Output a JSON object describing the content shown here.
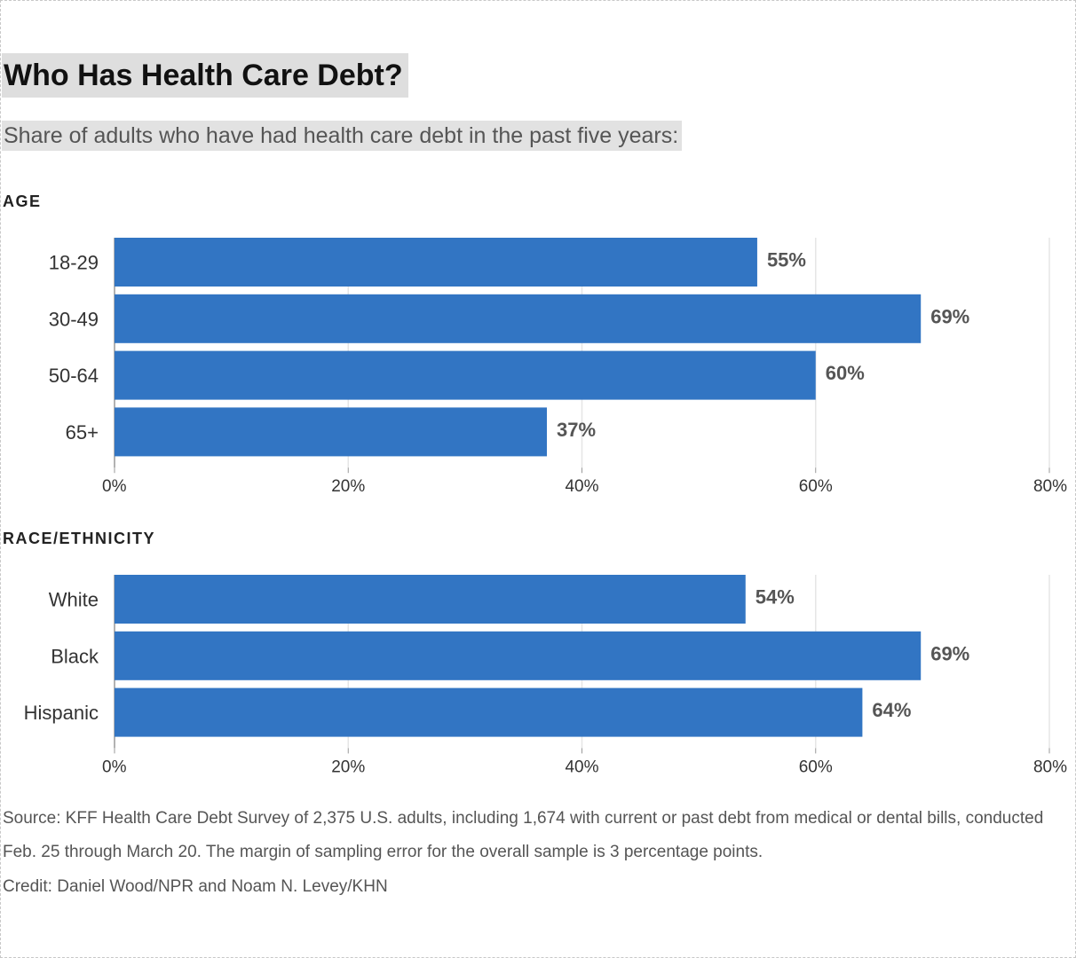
{
  "title": "Who Has Health Care Debt?",
  "subtitle": "Share of adults who have had health care debt in the past five years:",
  "source": "Source: KFF Health Care Debt Survey of 2,375 U.S. adults, including 1,674 with current or past debt from medical or dental bills, conducted Feb. 25 through March 20. The margin of sampling error for the overall sample is 3 percentage points.",
  "credit": "Credit: Daniel Wood/NPR and Noam N. Levey/KHN",
  "colors": {
    "bar": "#3275c3",
    "grid": "#e6e6e6",
    "axis": "#999999"
  },
  "chart_data": [
    {
      "type": "bar",
      "orientation": "horizontal",
      "section": "AGE",
      "categories": [
        "18-29",
        "30-49",
        "50-64",
        "65+"
      ],
      "values": [
        55,
        69,
        60,
        37
      ],
      "value_labels": [
        "55%",
        "69%",
        "60%",
        "37%"
      ],
      "xlim": [
        0,
        80
      ],
      "xticks": [
        0,
        20,
        40,
        60,
        80
      ],
      "xtick_labels": [
        "0%",
        "20%",
        "40%",
        "60%",
        "80%"
      ],
      "grid": true
    },
    {
      "type": "bar",
      "orientation": "horizontal",
      "section": "RACE/ETHNICITY",
      "categories": [
        "White",
        "Black",
        "Hispanic"
      ],
      "values": [
        54,
        69,
        64
      ],
      "value_labels": [
        "54%",
        "69%",
        "64%"
      ],
      "xlim": [
        0,
        80
      ],
      "xticks": [
        0,
        20,
        40,
        60,
        80
      ],
      "xtick_labels": [
        "0%",
        "20%",
        "40%",
        "60%",
        "80%"
      ],
      "grid": true
    }
  ]
}
